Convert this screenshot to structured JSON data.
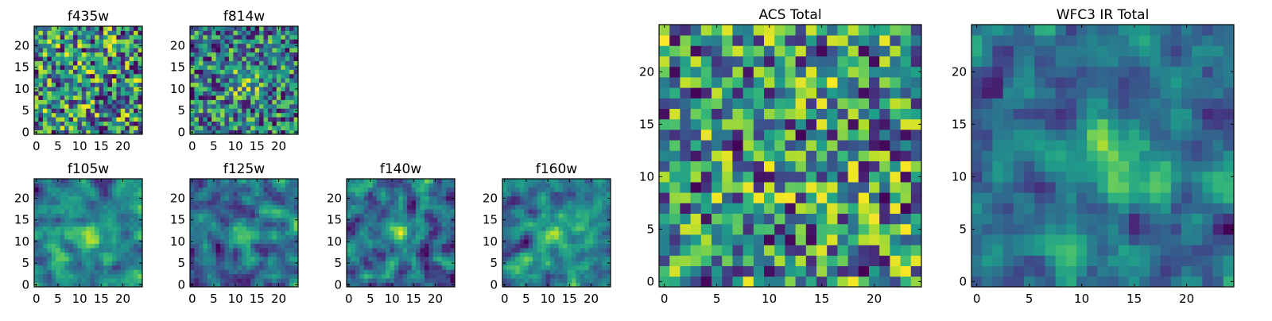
{
  "chart_data": [
    {
      "type": "heatmap",
      "title": "f435w",
      "xticks": [
        "0",
        "5",
        "10",
        "15",
        "20"
      ],
      "yticks": [
        "0",
        "5",
        "10",
        "15",
        "20"
      ],
      "xlim": [
        -0.5,
        24.5
      ],
      "ylim": [
        -0.5,
        24.5
      ],
      "grid": false,
      "pattern": "noise",
      "colormap": "viridis",
      "nx": 25,
      "ny": 25
    },
    {
      "type": "heatmap",
      "title": "f814w",
      "xticks": [
        "0",
        "5",
        "10",
        "15",
        "20"
      ],
      "yticks": [
        "0",
        "5",
        "10",
        "15",
        "20"
      ],
      "xlim": [
        -0.5,
        24.5
      ],
      "ylim": [
        -0.5,
        24.5
      ],
      "grid": false,
      "pattern": "noise_center",
      "colormap": "viridis",
      "nx": 25,
      "ny": 25
    },
    {
      "type": "heatmap",
      "title": "f105w",
      "xticks": [
        "0",
        "5",
        "10",
        "15",
        "20"
      ],
      "yticks": [
        "0",
        "5",
        "10",
        "15",
        "20"
      ],
      "xlim": [
        -0.5,
        24.5
      ],
      "ylim": [
        -0.5,
        24.5
      ],
      "grid": false,
      "pattern": "smooth_center",
      "colormap": "viridis",
      "nx": 25,
      "ny": 25
    },
    {
      "type": "heatmap",
      "title": "f125w",
      "xticks": [
        "0",
        "5",
        "10",
        "15",
        "20"
      ],
      "yticks": [
        "0",
        "5",
        "10",
        "15",
        "20"
      ],
      "xlim": [
        -0.5,
        24.5
      ],
      "ylim": [
        -0.5,
        24.5
      ],
      "grid": false,
      "pattern": "smooth_center",
      "colormap": "viridis",
      "nx": 25,
      "ny": 25
    },
    {
      "type": "heatmap",
      "title": "f140w",
      "xticks": [
        "0",
        "5",
        "10",
        "15",
        "20"
      ],
      "yticks": [
        "0",
        "5",
        "10",
        "15",
        "20"
      ],
      "xlim": [
        -0.5,
        24.5
      ],
      "ylim": [
        -0.5,
        24.5
      ],
      "grid": false,
      "pattern": "smooth_center",
      "colormap": "viridis",
      "nx": 25,
      "ny": 25
    },
    {
      "type": "heatmap",
      "title": "f160w",
      "xticks": [
        "0",
        "5",
        "10",
        "15",
        "20"
      ],
      "yticks": [
        "0",
        "5",
        "10",
        "15",
        "20"
      ],
      "xlim": [
        -0.5,
        24.5
      ],
      "ylim": [
        -0.5,
        24.5
      ],
      "grid": false,
      "pattern": "smooth_center",
      "colormap": "viridis",
      "nx": 25,
      "ny": 25
    },
    {
      "type": "heatmap",
      "title": "ACS Total",
      "xticks": [
        "0",
        "5",
        "10",
        "15",
        "20"
      ],
      "yticks": [
        "0",
        "5",
        "10",
        "15",
        "20"
      ],
      "xlim": [
        -0.5,
        24.5
      ],
      "ylim": [
        -0.5,
        24.5
      ],
      "grid": false,
      "pattern": "noise",
      "colormap": "viridis",
      "nx": 25,
      "ny": 25
    },
    {
      "type": "heatmap",
      "title": "WFC3 IR Total",
      "xticks": [
        "0",
        "5",
        "10",
        "15",
        "20"
      ],
      "yticks": [
        "0",
        "5",
        "10",
        "15",
        "20"
      ],
      "xlim": [
        -0.5,
        24.5
      ],
      "ylim": [
        -0.5,
        24.5
      ],
      "grid": false,
      "pattern": "blob_center",
      "colormap": "viridis",
      "nx": 25,
      "ny": 25
    }
  ]
}
